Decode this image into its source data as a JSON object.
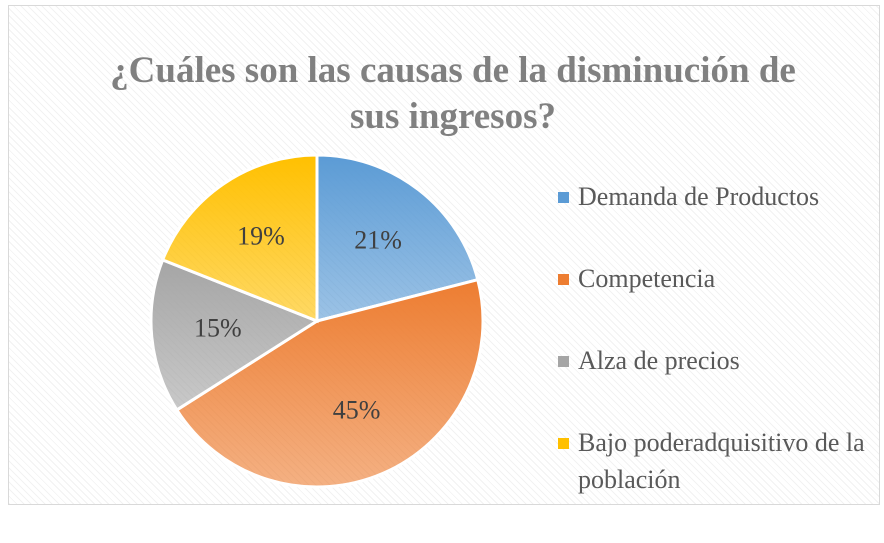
{
  "chart_data": {
    "type": "pie",
    "title": "¿Cuáles son las causas de la disminución de sus ingresos?",
    "categories": [
      "Demanda de Productos",
      "Competencia",
      "Alza de precios",
      "Bajo poderadquisitivo de la población"
    ],
    "values": [
      21,
      45,
      15,
      19
    ],
    "value_labels": [
      "21%",
      "45%",
      "15%",
      "19%"
    ],
    "colors": [
      "#5b9bd5",
      "#ed7d31",
      "#a5a5a5",
      "#ffc000"
    ],
    "legend": "right"
  }
}
